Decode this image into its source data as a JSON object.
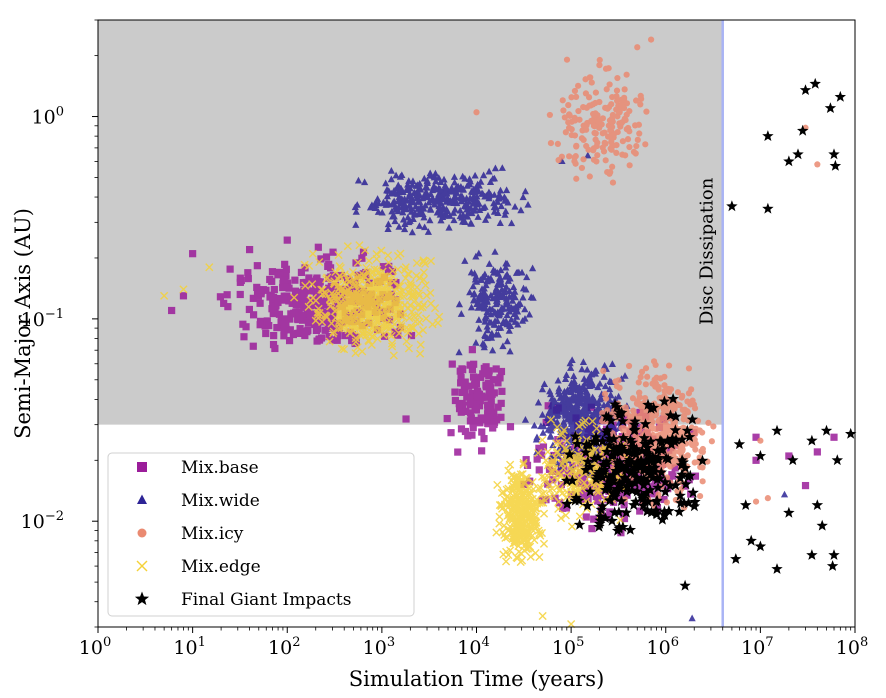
{
  "chart_data": {
    "type": "scatter",
    "xlabel": "Simulation Time (years)",
    "ylabel": "Semi-Major Axis (AU)",
    "x_scale": "log",
    "y_scale": "log",
    "xlim": [
      1,
      100000000
    ],
    "ylim": [
      0.003,
      3
    ],
    "x_ticks": [
      {
        "value": 1,
        "base": "10",
        "exp": "0"
      },
      {
        "value": 10,
        "base": "10",
        "exp": "1"
      },
      {
        "value": 100,
        "base": "10",
        "exp": "2"
      },
      {
        "value": 1000,
        "base": "10",
        "exp": "3"
      },
      {
        "value": 10000,
        "base": "10",
        "exp": "4"
      },
      {
        "value": 100000,
        "base": "10",
        "exp": "5"
      },
      {
        "value": 1000000,
        "base": "10",
        "exp": "6"
      },
      {
        "value": 10000000,
        "base": "10",
        "exp": "7"
      },
      {
        "value": 100000000,
        "base": "10",
        "exp": "8"
      }
    ],
    "y_ticks": [
      {
        "value": 0.01,
        "base": "10",
        "exp": "−2"
      },
      {
        "value": 0.1,
        "base": "10",
        "exp": "−1"
      },
      {
        "value": 1,
        "base": "10",
        "exp": "0"
      }
    ],
    "grid": false,
    "shaded_region": {
      "x_max": 4000000,
      "y_min": 0.03,
      "y_min_right_x": 20000,
      "color": "#cbcbcb"
    },
    "vline": {
      "x": 4000000,
      "color": "#a9b4f5",
      "label": "Disc Dissipation"
    },
    "legend": {
      "position": "lower-left"
    },
    "series": [
      {
        "name": "Mix.base",
        "marker": "square",
        "color": "#9b1d9a",
        "clusters": [
          {
            "x": [
              10,
              4000
            ],
            "y": [
              0.06,
              0.25
            ],
            "n": 350
          },
          {
            "x": [
              4000,
              30000
            ],
            "y": [
              0.02,
              0.08
            ],
            "n": 120
          },
          {
            "x": [
              20000,
              3000000
            ],
            "y": [
              0.008,
              0.045
            ],
            "n": 330
          }
        ],
        "points": [
          {
            "x": 6,
            "y": 0.11
          },
          {
            "x": 8,
            "y": 0.13
          },
          {
            "x": 10,
            "y": 0.21
          },
          {
            "x": 40,
            "y": 0.22
          },
          {
            "x": 100,
            "y": 0.245
          },
          {
            "x": 1800,
            "y": 0.032
          },
          {
            "x": 9000000,
            "y": 0.02
          },
          {
            "x": 20000000,
            "y": 0.021
          },
          {
            "x": 40000000,
            "y": 0.022
          },
          {
            "x": 30000000,
            "y": 0.015
          },
          {
            "x": 9000000,
            "y": 0.026
          },
          {
            "x": 60000000,
            "y": 0.026
          }
        ]
      },
      {
        "name": "Mix.wide",
        "marker": "triangle",
        "color": "#2d2496",
        "clusters": [
          {
            "x": [
              300,
              60000
            ],
            "y": [
              0.25,
              0.6
            ],
            "n": 350
          },
          {
            "x": [
              5000,
              50000
            ],
            "y": [
              0.06,
              0.25
            ],
            "n": 200
          },
          {
            "x": [
              30000,
              500000
            ],
            "y": [
              0.015,
              0.07
            ],
            "n": 450
          }
        ],
        "points": [
          {
            "x": 1900000,
            "y": 0.0033
          },
          {
            "x": 18000000,
            "y": 0.0135
          },
          {
            "x": 150000,
            "y": 0.64
          },
          {
            "x": 80000,
            "y": 0.6
          }
        ]
      },
      {
        "name": "Mix.icy",
        "marker": "circle",
        "color": "#ea8a71",
        "clusters": [
          {
            "x": [
              50000,
              900000
            ],
            "y": [
              0.4,
              2.2
            ],
            "n": 190
          },
          {
            "x": [
              150000,
              4000000
            ],
            "y": [
              0.01,
              0.07
            ],
            "n": 520
          }
        ],
        "points": [
          {
            "x": 10000,
            "y": 1.05
          },
          {
            "x": 700000,
            "y": 2.4
          },
          {
            "x": 500000,
            "y": 2.2
          },
          {
            "x": 30000000,
            "y": 0.88
          },
          {
            "x": 40000000,
            "y": 0.58
          },
          {
            "x": 12000000,
            "y": 0.013
          },
          {
            "x": 9000000,
            "y": 0.0125
          },
          {
            "x": 10000000,
            "y": 0.025
          }
        ]
      },
      {
        "name": "Mix.edge",
        "marker": "x",
        "color": "#f5d238",
        "clusters": [
          {
            "x": [
              100,
              6000
            ],
            "y": [
              0.06,
              0.25
            ],
            "n": 500
          },
          {
            "x": [
              15000,
              60000
            ],
            "y": [
              0.005,
              0.022
            ],
            "n": 300
          },
          {
            "x": [
              30000,
              500000
            ],
            "y": [
              0.008,
              0.04
            ],
            "n": 200
          }
        ],
        "points": [
          {
            "x": 5,
            "y": 0.13
          },
          {
            "x": 8,
            "y": 0.14
          },
          {
            "x": 15,
            "y": 0.18
          },
          {
            "x": 50000,
            "y": 0.0034
          },
          {
            "x": 100000,
            "y": 0.0031
          }
        ]
      },
      {
        "name": "Final Giant Impacts",
        "marker": "star",
        "color": "#000000",
        "clusters": [
          {
            "x": [
              60000,
              4000000
            ],
            "y": [
              0.007,
              0.045
            ],
            "n": 260
          }
        ],
        "points": [
          {
            "x": 5000000,
            "y": 0.36
          },
          {
            "x": 12000000,
            "y": 0.35
          },
          {
            "x": 12000000,
            "y": 0.8
          },
          {
            "x": 20000000,
            "y": 0.6
          },
          {
            "x": 25000000,
            "y": 0.65
          },
          {
            "x": 30000000,
            "y": 1.35
          },
          {
            "x": 38000000,
            "y": 1.45
          },
          {
            "x": 55000000,
            "y": 1.1
          },
          {
            "x": 70000000,
            "y": 1.25
          },
          {
            "x": 28000000,
            "y": 0.85
          },
          {
            "x": 60000000,
            "y": 0.65
          },
          {
            "x": 62000000,
            "y": 0.57
          },
          {
            "x": 6000000,
            "y": 0.024
          },
          {
            "x": 10000000,
            "y": 0.021
          },
          {
            "x": 15000000,
            "y": 0.028
          },
          {
            "x": 22000000,
            "y": 0.02
          },
          {
            "x": 35000000,
            "y": 0.025
          },
          {
            "x": 50000000,
            "y": 0.028
          },
          {
            "x": 65000000,
            "y": 0.02
          },
          {
            "x": 90000000,
            "y": 0.027
          },
          {
            "x": 7000000,
            "y": 0.012
          },
          {
            "x": 8000000,
            "y": 0.008
          },
          {
            "x": 10000000,
            "y": 0.0075
          },
          {
            "x": 20000000,
            "y": 0.011
          },
          {
            "x": 40000000,
            "y": 0.012
          },
          {
            "x": 45000000,
            "y": 0.0095
          },
          {
            "x": 35000000,
            "y": 0.0068
          },
          {
            "x": 60000000,
            "y": 0.0068
          },
          {
            "x": 58000000,
            "y": 0.006
          },
          {
            "x": 15000000,
            "y": 0.0058
          },
          {
            "x": 1600000,
            "y": 0.0048
          },
          {
            "x": 5500000,
            "y": 0.0065
          }
        ]
      }
    ]
  }
}
